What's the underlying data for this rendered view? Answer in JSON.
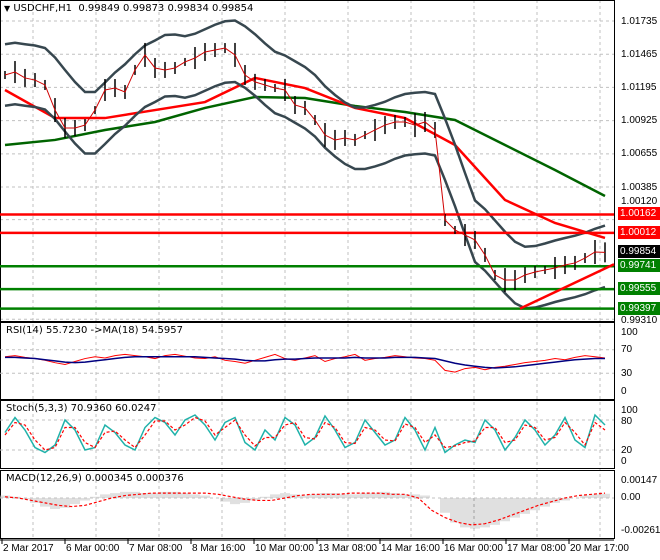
{
  "header": {
    "symbol": "USDCHF,H1",
    "open": "0.99849",
    "high": "0.99873",
    "low": "0.99834",
    "close": "0.99854"
  },
  "colors": {
    "bull_line": "#ff0000",
    "support_line": "#008000",
    "price_tag": "#000000",
    "ma_fast": "#ff0000",
    "ma_slow": "#006400",
    "bands": "#37474f",
    "rsi": "#ff0000",
    "rsi_ma": "#000080",
    "stoch_main": "#20b2aa",
    "stoch_signal": "#ff0000",
    "macd_hist": "#c0c0c0",
    "macd_signal": "#ff0000"
  },
  "chart_data": [
    {
      "type": "line",
      "title": "USDCHF,H1",
      "ylim": [
        0.9931,
        1.0187
      ],
      "y_ticks": [
        "1.01735",
        "1.01465",
        "1.01195",
        "1.00925",
        "1.00655",
        "1.00385",
        "1.00120",
        "0.99310"
      ],
      "x_ticks": [
        "2 Mar 2017",
        "6 Mar 00:00",
        "7 Mar 08:00",
        "8 Mar 16:00",
        "10 Mar 00:00",
        "13 Mar 08:00",
        "14 Mar 16:00",
        "16 Mar 00:00",
        "17 Mar 08:00",
        "20 Mar 17:00"
      ],
      "grid": true,
      "close": [
        1.01296,
        1.0132,
        1.01272,
        1.01255,
        1.01215,
        1.01011,
        1.00865,
        1.00865,
        1.00889,
        1.01011,
        1.01174,
        1.0119,
        1.01158,
        1.01337,
        1.01459,
        1.01353,
        1.01337,
        1.01353,
        1.01402,
        1.01434,
        1.01483,
        1.01499,
        1.01515,
        1.01459,
        1.01296,
        1.0124,
        1.01215,
        1.0119,
        1.01174,
        1.01052,
        1.01028,
        1.0093,
        1.00808,
        1.00768,
        1.00784,
        1.00768,
        1.00808,
        1.00849,
        1.00889,
        1.00914,
        1.00914,
        1.00889,
        1.00914,
        1.00849,
        1.00117,
        1.00036,
        0.99995,
        0.99955,
        0.99833,
        0.9967,
        0.99629,
        0.99629,
        0.9967,
        0.99694,
        0.99711,
        0.99727,
        0.99751,
        0.99768,
        0.99808,
        0.99857,
        0.99854
      ],
      "ma_fast": [
        1.01174,
        1.00946,
        1.00946,
        1.01011,
        1.01076,
        1.01272,
        1.0119,
        1.01028,
        1.00946,
        1.00727,
        1.0028,
        1.00093,
        0.99971
      ],
      "ma_slow": [
        1.00727,
        1.00768,
        1.00849,
        1.00914,
        1.01028,
        1.01117,
        1.01109,
        1.01044,
        1.00995,
        1.0093,
        1.00727,
        1.00524,
        1.00312
      ],
      "levels": [
        {
          "value": "1.00162",
          "kind": "resistance"
        },
        {
          "value": "1.00012",
          "kind": "resistance"
        },
        {
          "value": "0.99854",
          "kind": "current"
        },
        {
          "value": "0.99741",
          "kind": "support"
        },
        {
          "value": "0.99555",
          "kind": "support"
        },
        {
          "value": "0.99397",
          "kind": "support"
        }
      ],
      "trendline": {
        "from": 0.99397,
        "to": 0.99757
      }
    },
    {
      "type": "line",
      "title": "RSI(14) 55.7230  ->MA(18) 54.5957",
      "ylim": [
        0,
        100
      ],
      "y_ticks": [
        "100",
        "70",
        "30",
        "0"
      ],
      "rsi": [
        58,
        60,
        57,
        55,
        52,
        48,
        45,
        50,
        55,
        58,
        56,
        60,
        62,
        60,
        58,
        55,
        60,
        62,
        59,
        56,
        55,
        58,
        52,
        50,
        47,
        52,
        57,
        62,
        55,
        52,
        56,
        60,
        50,
        55,
        58,
        62,
        52,
        55,
        57,
        60,
        58,
        56,
        55,
        52,
        35,
        32,
        38,
        40,
        36,
        40,
        42,
        45,
        48,
        50,
        52,
        55,
        53,
        57,
        60,
        58,
        56
      ],
      "rsi_ma": [
        57,
        57,
        56,
        55,
        53,
        51,
        49,
        48,
        49,
        51,
        53,
        55,
        57,
        58,
        58,
        58,
        58,
        58,
        58,
        58,
        57,
        56,
        55,
        54,
        52,
        51,
        51,
        53,
        54,
        54,
        55,
        56,
        56,
        56,
        56,
        57,
        56,
        56,
        56,
        57,
        57,
        57,
        56,
        55,
        51,
        47,
        44,
        42,
        40,
        39,
        40,
        41,
        43,
        45,
        47,
        49,
        51,
        53,
        54,
        55,
        55
      ]
    },
    {
      "type": "line",
      "title": "Stoch(5,3,3) 70.9360 60.0247",
      "ylim": [
        0,
        100
      ],
      "y_ticks": [
        "100",
        "80",
        "20",
        "0"
      ],
      "main": [
        55,
        85,
        60,
        25,
        15,
        30,
        80,
        60,
        20,
        25,
        70,
        55,
        30,
        20,
        65,
        85,
        75,
        50,
        80,
        90,
        70,
        40,
        75,
        85,
        35,
        20,
        60,
        40,
        85,
        70,
        30,
        45,
        88,
        60,
        25,
        35,
        80,
        55,
        30,
        40,
        85,
        60,
        20,
        65,
        15,
        30,
        40,
        35,
        80,
        60,
        20,
        45,
        80,
        60,
        30,
        50,
        85,
        40,
        25,
        90,
        70
      ],
      "signal": [
        50,
        75,
        70,
        40,
        20,
        25,
        65,
        65,
        35,
        25,
        55,
        58,
        40,
        25,
        50,
        78,
        78,
        60,
        70,
        85,
        78,
        50,
        65,
        80,
        50,
        28,
        45,
        45,
        70,
        75,
        45,
        42,
        75,
        65,
        35,
        33,
        65,
        60,
        40,
        38,
        72,
        65,
        35,
        50,
        25,
        28,
        35,
        38,
        65,
        65,
        35,
        40,
        70,
        65,
        40,
        45,
        75,
        55,
        30,
        75,
        60
      ]
    },
    {
      "type": "bar",
      "title": "MACD(12,26,9) 0.000345 0.000376",
      "ylim": [
        -0.002614,
        0.00147
      ],
      "y_ticks": [
        "0.00147",
        "0.00",
        "-0.002614"
      ],
      "hist": [
        0.0002,
        0.0001,
        -0.0001,
        -0.0004,
        -0.0007,
        -0.0009,
        -0.0008,
        -0.0005,
        -0.0002,
        0.0001,
        0.0003,
        0.0004,
        0.0005,
        0.0005,
        0.0004,
        0.0004,
        0.0005,
        0.0005,
        0.0004,
        0.0003,
        0.0002,
        0.0,
        -0.0003,
        -0.0005,
        -0.0004,
        -0.0002,
        0.0001,
        0.0003,
        0.0004,
        0.0003,
        0.0002,
        0.0003,
        0.0004,
        0.0004,
        0.0003,
        0.0003,
        0.0004,
        0.0004,
        0.0005,
        0.0004,
        0.0003,
        0.0003,
        0.0002,
        0.0,
        -0.0012,
        -0.002,
        -0.0024,
        -0.0025,
        -0.0024,
        -0.0022,
        -0.0019,
        -0.0016,
        -0.0013,
        -0.001,
        -0.0007,
        -0.0004,
        -0.0002,
        0.0,
        0.0002,
        0.0003,
        0.00035
      ],
      "signal": [
        0.0001,
        0.0,
        -0.0002,
        -0.0004,
        -0.0006,
        -0.0007,
        -0.0006,
        -0.0003,
        0.0,
        0.0002,
        0.0003,
        0.0004,
        0.0004,
        0.0004,
        0.0004,
        0.0004,
        0.0003,
        0.0001,
        -0.0001,
        -0.0002,
        -0.0002,
        0.0,
        0.0002,
        0.0003,
        0.0003,
        0.0003,
        0.0004,
        0.0004,
        0.0004,
        0.0003,
        0.0003,
        0.0,
        -0.001,
        -0.0016,
        -0.002,
        -0.0022,
        -0.0021,
        -0.0018,
        -0.0014,
        -0.001,
        -0.0006,
        -0.0003,
        0.0,
        0.0002,
        0.0003,
        0.0004
      ]
    }
  ]
}
